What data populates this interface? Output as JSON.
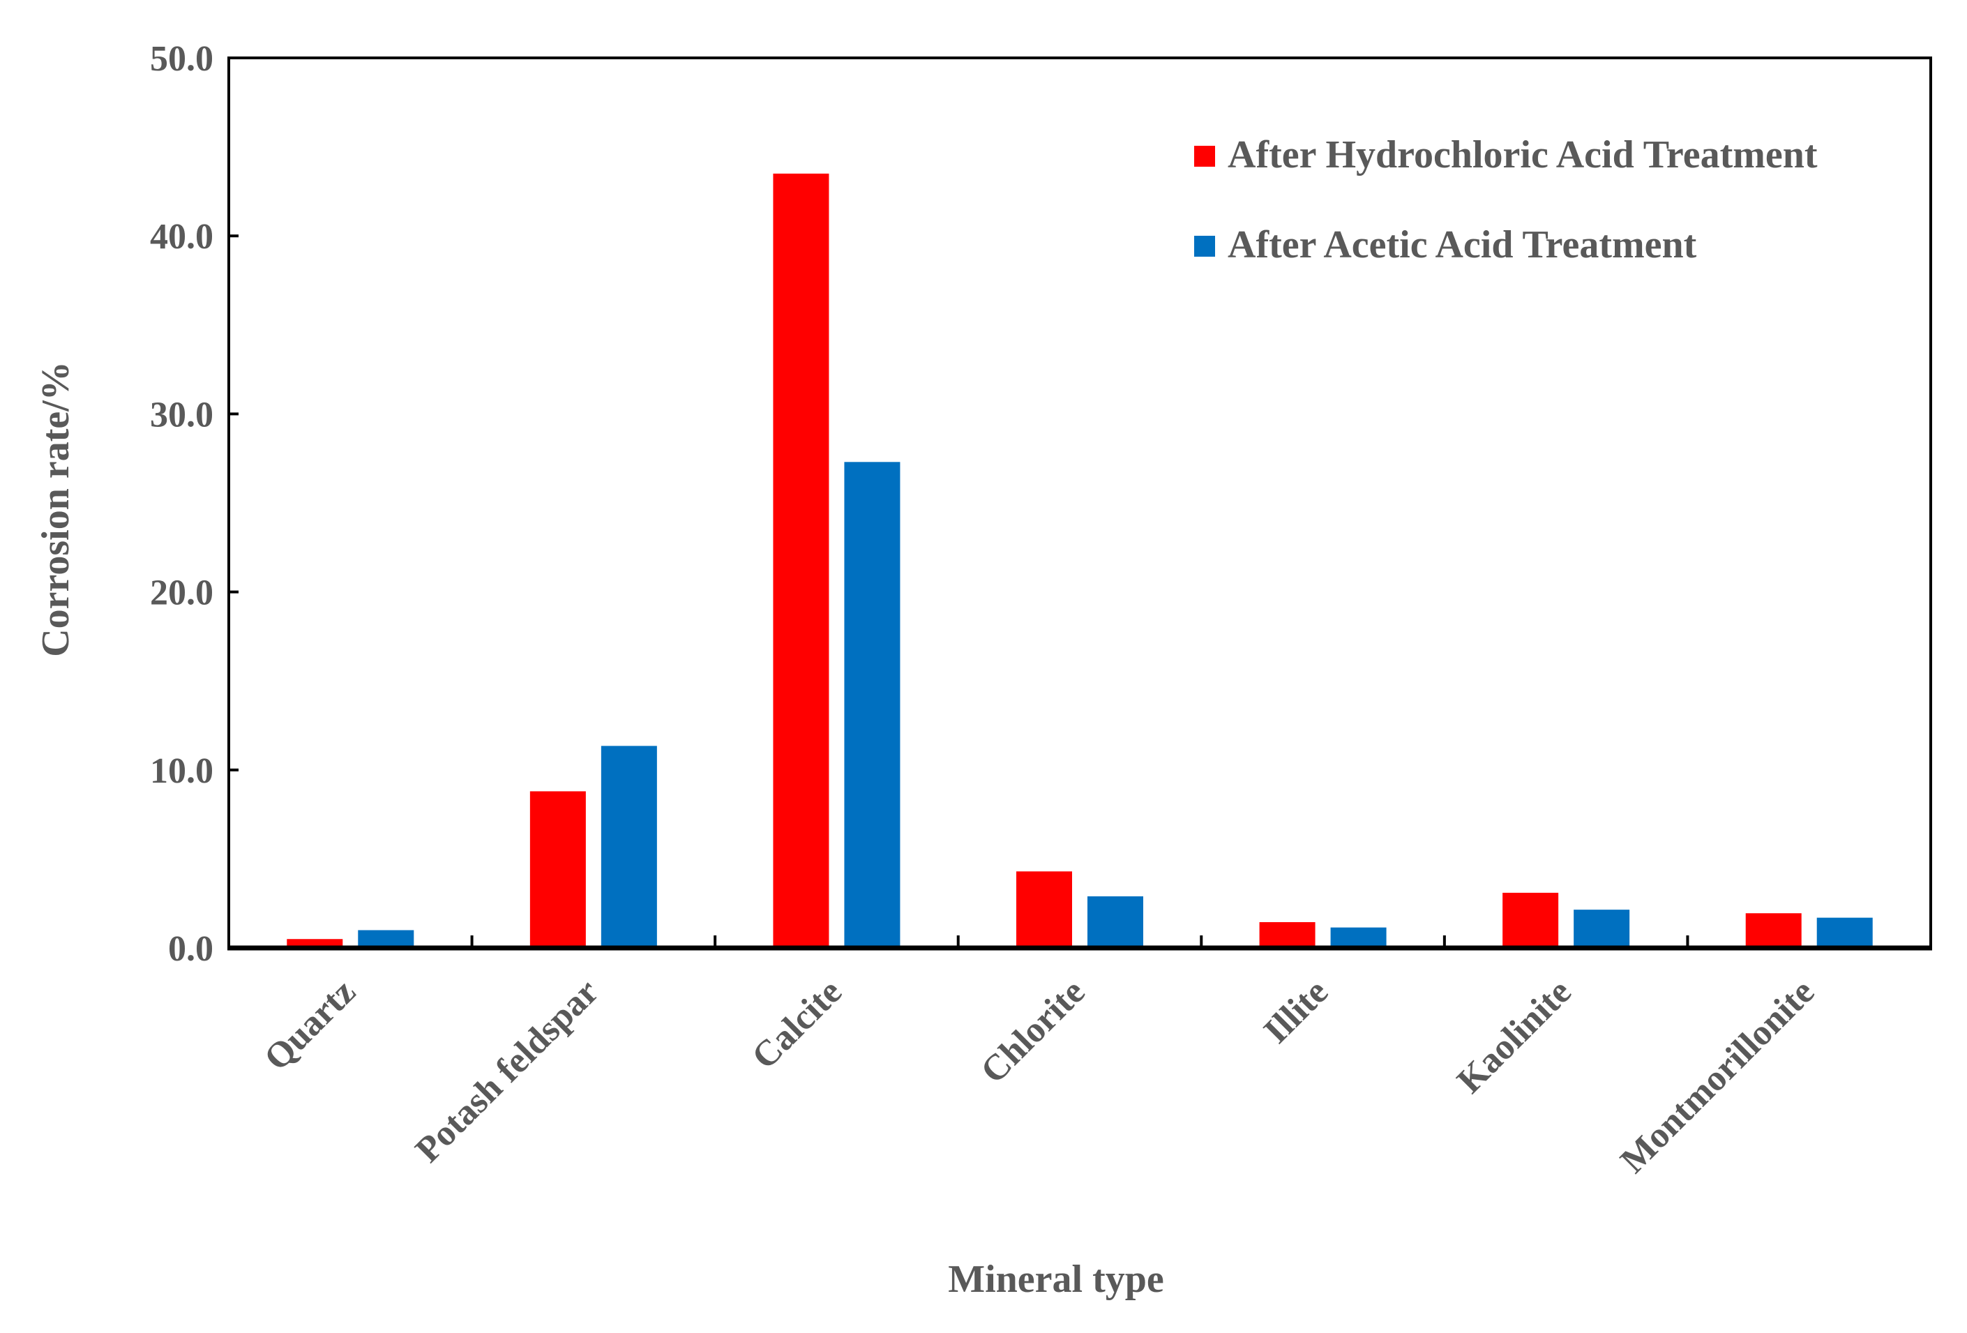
{
  "chart_data": {
    "type": "bar",
    "title": "",
    "xlabel": "Mineral type",
    "ylabel": "Corrosion rate/%",
    "ylim": [
      0,
      50
    ],
    "yticks": [
      "0.0",
      "10.0",
      "20.0",
      "30.0",
      "40.0",
      "50.0"
    ],
    "grid": false,
    "legend_position": "top-right",
    "categories": [
      "Quartz",
      "Potash feldspar",
      "Calcite",
      "Chlorite",
      "Illite",
      "Kaolinite",
      "Montmorillonite"
    ],
    "series": [
      {
        "name": "After Hydrochloric Acid Treatment",
        "color": "#FF0000",
        "values": [
          0.5,
          8.8,
          43.5,
          4.3,
          1.45,
          3.1,
          1.95
        ]
      },
      {
        "name": "After Acetic Acid Treatment",
        "color": "#0070C0",
        "values": [
          1.0,
          11.35,
          27.3,
          2.9,
          1.15,
          2.15,
          1.7
        ]
      }
    ]
  }
}
